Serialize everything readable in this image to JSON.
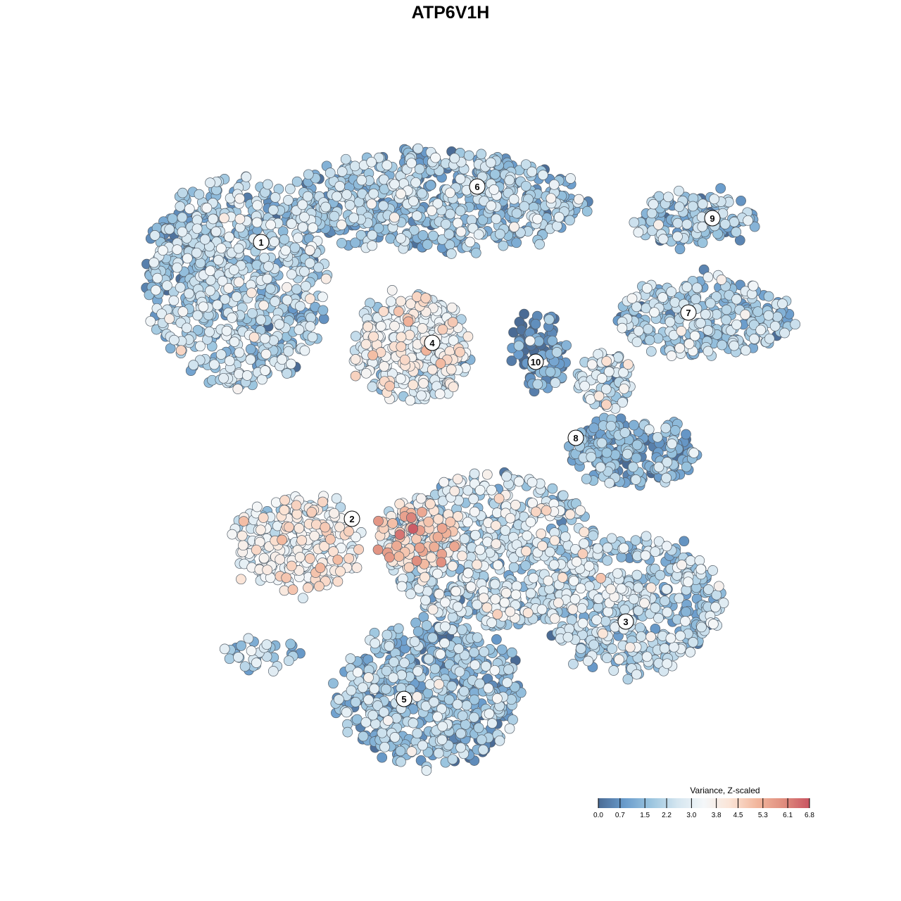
{
  "chart_data": {
    "type": "scatter",
    "title": "ATP6V1H",
    "xlabel": "",
    "ylabel": "",
    "grid": false,
    "color_scale": {
      "title": "Variance, Z-scaled",
      "min": 0.0,
      "max": 6.8,
      "ticks": [
        "0.0",
        "0.7",
        "1.5",
        "2.2",
        "3.0",
        "3.8",
        "4.5",
        "5.3",
        "6.1",
        "6.8"
      ],
      "colors": [
        "#4a6b95",
        "#6a9ccc",
        "#9bc5df",
        "#d5e6f0",
        "#f4f7f9",
        "#fbe4d6",
        "#f2b79d",
        "#e08e7f",
        "#c95562"
      ]
    },
    "legend_position": "bottom-right",
    "clusters": [
      {
        "id": "1",
        "level": 1.9
      },
      {
        "id": "2",
        "level": 3.4
      },
      {
        "id": "3",
        "level": 2.0
      },
      {
        "id": "4",
        "level": 3.0
      },
      {
        "id": "5",
        "level": 1.5
      },
      {
        "id": "6",
        "level": 1.7
      },
      {
        "id": "7",
        "level": 1.8
      },
      {
        "id": "8",
        "level": 1.2
      },
      {
        "id": "9",
        "level": 1.6
      },
      {
        "id": "10",
        "level": 0.6
      }
    ]
  }
}
